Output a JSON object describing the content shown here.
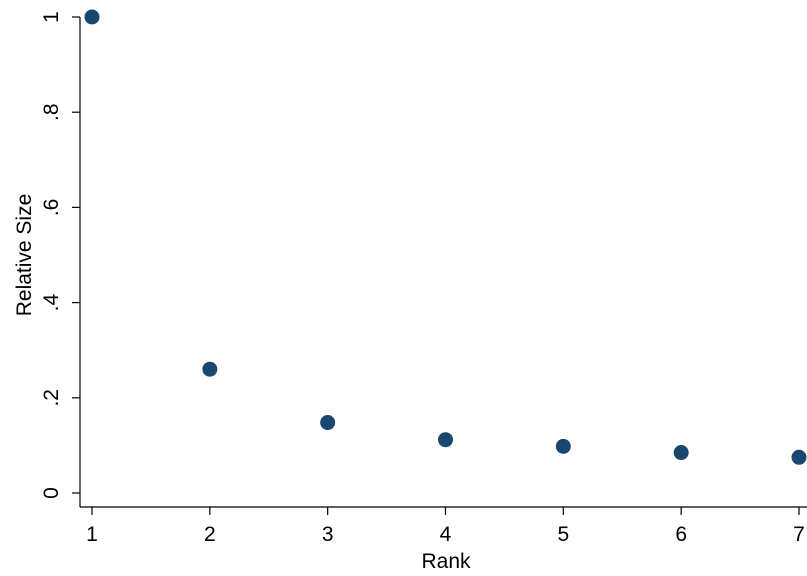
{
  "chart_data": {
    "type": "scatter",
    "title": "",
    "xlabel": "Rank",
    "ylabel": "Relative Size",
    "xlim": [
      1,
      7
    ],
    "ylim": [
      0,
      1
    ],
    "x_ticks": [
      1,
      2,
      3,
      4,
      5,
      6,
      7
    ],
    "x_tick_labels": [
      "1",
      "2",
      "3",
      "4",
      "5",
      "6",
      "7"
    ],
    "y_ticks": [
      0,
      0.2,
      0.4,
      0.6,
      0.8,
      1
    ],
    "y_tick_labels": [
      "0",
      ".2",
      ".4",
      ".6",
      ".8",
      "1"
    ],
    "grid": false,
    "legend": "none",
    "marker_color": "#1a476f",
    "series": [
      {
        "points": [
          {
            "x": 1,
            "y": 1.0
          },
          {
            "x": 2,
            "y": 0.26
          },
          {
            "x": 3,
            "y": 0.148
          },
          {
            "x": 4,
            "y": 0.112
          },
          {
            "x": 5,
            "y": 0.098
          },
          {
            "x": 6,
            "y": 0.085
          },
          {
            "x": 7,
            "y": 0.075
          }
        ]
      }
    ]
  }
}
